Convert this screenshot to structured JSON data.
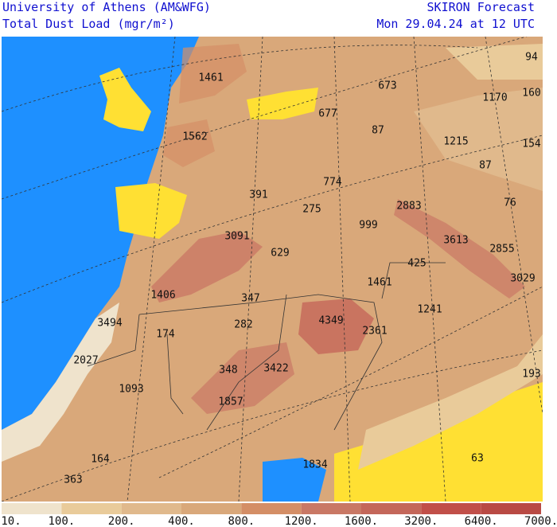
{
  "header": {
    "left": [
      "University of Athens (AM&WFG)",
      "Total Dust Load (mgr/m²)"
    ],
    "right": [
      "SKIRON Forecast",
      "Mon 29.04.24 at 12 UTC"
    ]
  },
  "map_labels": [
    1461,
    673,
    94,
    1170,
    160,
    677,
    87,
    1562,
    1215,
    154,
    87,
    774,
    391,
    275,
    2883,
    76,
    999,
    3091,
    3613,
    2855,
    629,
    425,
    1461,
    3029,
    1406,
    347,
    1241,
    3494,
    282,
    4349,
    2361,
    174,
    2027,
    348,
    3422,
    193,
    1093,
    1857,
    1834,
    164,
    63,
    363
  ],
  "colorbar": {
    "labels": [
      "10.",
      "100.",
      "200.",
      "400.",
      "800.",
      "1200.",
      "1600.",
      "3200.",
      "6400.",
      "7000."
    ],
    "colors": [
      "#efe3cc",
      "#e9cb9a",
      "#e0b98c",
      "#d9a87a",
      "#d48e66",
      "#c97865",
      "#c4675a",
      "#c14f49",
      "#b94a44"
    ]
  }
}
